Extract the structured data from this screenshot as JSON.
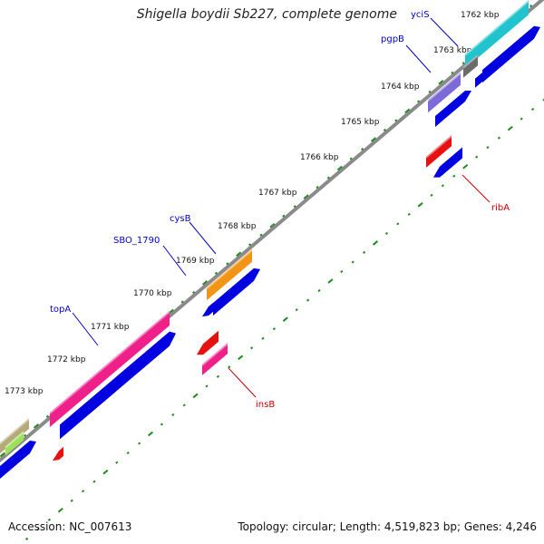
{
  "title": "Shigella boydii Sb227, complete genome",
  "footer": {
    "accession": "Accession: NC_007613",
    "summary": "Topology: circular; Length: 4,519,823 bp; Genes: 4,246"
  },
  "colors": {
    "backbone": "#808080",
    "tick": "#1e8c1e",
    "label_forward": "#0000cc",
    "label_reverse": "#cc0000"
  },
  "ticks": [
    "1762 kbp",
    "1763 kbp",
    "1764 kbp",
    "1765 kbp",
    "1766 kbp",
    "1767 kbp",
    "1768 kbp",
    "1769 kbp",
    "1770 kbp",
    "1771 kbp",
    "1772 kbp",
    "1773 kbp"
  ],
  "gene_labels": [
    {
      "name": "yciS",
      "strand": "forward"
    },
    {
      "name": "pgpB",
      "strand": "forward"
    },
    {
      "name": "cysB",
      "strand": "forward"
    },
    {
      "name": "SBO_1790",
      "strand": "forward"
    },
    {
      "name": "topA",
      "strand": "forward"
    },
    {
      "name": "ribA",
      "strand": "reverse"
    },
    {
      "name": "insB",
      "strand": "reverse"
    }
  ]
}
